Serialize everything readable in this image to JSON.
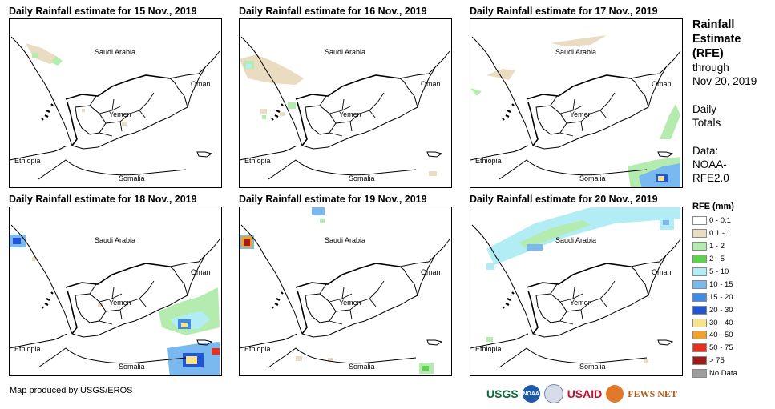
{
  "panels": [
    {
      "title": "Daily Rainfall estimate for 15 Nov., 2019",
      "day": 15
    },
    {
      "title": "Daily Rainfall estimate for 16 Nov., 2019",
      "day": 16
    },
    {
      "title": "Daily Rainfall estimate for 17 Nov., 2019",
      "day": 17
    },
    {
      "title": "Daily Rainfall estimate for 18 Nov., 2019",
      "day": 18
    },
    {
      "title": "Daily Rainfall estimate for 19 Nov., 2019",
      "day": 19
    },
    {
      "title": "Daily Rainfall estimate for 20 Nov., 2019",
      "day": 20
    }
  ],
  "map_labels": {
    "saudi_arabia": "Saudi Arabia",
    "oman": "Oman",
    "yemen": "Yemen",
    "ethiopia": "Ethiopia",
    "somalia": "Somalia"
  },
  "sidebar": {
    "title_lines": [
      "Rainfall",
      "Estimate",
      "(RFE)"
    ],
    "through": "through",
    "date": "Nov 20, 2019",
    "daily": "Daily",
    "totals": "Totals",
    "data_label": "Data:",
    "data_source_1": "NOAA-",
    "data_source_2": "RFE2.0"
  },
  "legend": {
    "title": "RFE (mm)",
    "items": [
      {
        "label": "0 - 0.1",
        "color": "#ffffff"
      },
      {
        "label": "0.1 - 1",
        "color": "#eadcc0"
      },
      {
        "label": "1 - 2",
        "color": "#b4ecb0"
      },
      {
        "label": "2 - 5",
        "color": "#5cd34f"
      },
      {
        "label": "5 - 10",
        "color": "#b2ecf4"
      },
      {
        "label": "10 - 15",
        "color": "#7ab8f0"
      },
      {
        "label": "15 - 20",
        "color": "#3f8be8"
      },
      {
        "label": "20 - 30",
        "color": "#1f56d8"
      },
      {
        "label": "30 - 40",
        "color": "#f8e38a"
      },
      {
        "label": "40 - 50",
        "color": "#f0a126"
      },
      {
        "label": "50 - 75",
        "color": "#e8301c"
      },
      {
        "label": "> 75",
        "color": "#a01a18"
      },
      {
        "label": "No Data",
        "color": "#9e9e9e"
      }
    ]
  },
  "credit": "Map produced by USGS/EROS",
  "logos": {
    "usgs": "USGS",
    "noaa": "NOAA",
    "usaid": "USAID",
    "fews": "FEWS NET"
  }
}
